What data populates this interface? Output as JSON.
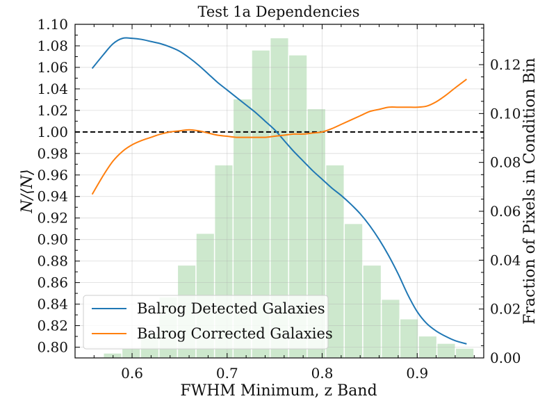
{
  "chart_data": {
    "type": "line",
    "title": "Test 1a Dependencies",
    "xlabel": "FWHM Minimum, z Band",
    "ylabel": "N/⟨N⟩",
    "y2label": "Fraction of Pixels in Condition Bin",
    "xlim": [
      0.54,
      0.97
    ],
    "ylim": [
      0.79,
      1.1
    ],
    "y2lim": [
      0.0,
      0.1365
    ],
    "xticks": [
      "0.6",
      "0.7",
      "0.8",
      "0.9"
    ],
    "xtick_values": [
      0.6,
      0.7,
      0.8,
      0.9
    ],
    "yticks": [
      "0.80",
      "0.82",
      "0.84",
      "0.86",
      "0.88",
      "0.90",
      "0.92",
      "0.94",
      "0.96",
      "0.98",
      "1.00",
      "1.02",
      "1.04",
      "1.06",
      "1.08",
      "1.10"
    ],
    "ytick_values": [
      0.8,
      0.82,
      0.84,
      0.86,
      0.88,
      0.9,
      0.92,
      0.94,
      0.96,
      0.98,
      1.0,
      1.02,
      1.04,
      1.06,
      1.08,
      1.1
    ],
    "y2ticks": [
      "0.00",
      "0.02",
      "0.04",
      "0.06",
      "0.08",
      "0.10",
      "0.12"
    ],
    "y2tick_values": [
      0.0,
      0.02,
      0.04,
      0.06,
      0.08,
      0.1,
      0.12
    ],
    "reference_line": 1.0,
    "grid": true,
    "legend_position": "lower-left",
    "histogram": {
      "color": "#2ca02c",
      "bin_width": 0.0195,
      "centers": [
        0.5795,
        0.599,
        0.6185,
        0.638,
        0.6575,
        0.677,
        0.6965,
        0.716,
        0.7355,
        0.755,
        0.7745,
        0.794,
        0.8135,
        0.833,
        0.8525,
        0.872,
        0.8915,
        0.911,
        0.9305,
        0.95
      ],
      "fractions": [
        0.002,
        0.004,
        0.01,
        0.025,
        0.038,
        0.051,
        0.079,
        0.106,
        0.126,
        0.131,
        0.124,
        0.102,
        0.079,
        0.055,
        0.038,
        0.024,
        0.016,
        0.009,
        0.006,
        0.004
      ]
    },
    "series": [
      {
        "name": "Balrog Detected Galaxies",
        "color": "#1f77b4",
        "x": [
          0.558,
          0.57,
          0.58,
          0.59,
          0.6,
          0.61,
          0.62,
          0.63,
          0.64,
          0.65,
          0.66,
          0.67,
          0.68,
          0.69,
          0.7,
          0.71,
          0.72,
          0.73,
          0.74,
          0.75,
          0.76,
          0.77,
          0.78,
          0.79,
          0.8,
          0.81,
          0.82,
          0.83,
          0.84,
          0.85,
          0.86,
          0.87,
          0.88,
          0.89,
          0.9,
          0.91,
          0.92,
          0.93,
          0.94,
          0.952
        ],
        "values": [
          1.059,
          1.072,
          1.082,
          1.087,
          1.087,
          1.086,
          1.084,
          1.082,
          1.079,
          1.075,
          1.069,
          1.062,
          1.054,
          1.046,
          1.039,
          1.032,
          1.025,
          1.018,
          1.01,
          1.002,
          0.992,
          0.982,
          0.973,
          0.964,
          0.956,
          0.948,
          0.941,
          0.933,
          0.924,
          0.913,
          0.9,
          0.885,
          0.868,
          0.849,
          0.833,
          0.822,
          0.815,
          0.81,
          0.806,
          0.803
        ]
      },
      {
        "name": "Balrog Corrected Galaxies",
        "color": "#ff7f0e",
        "x": [
          0.558,
          0.57,
          0.58,
          0.59,
          0.6,
          0.61,
          0.62,
          0.63,
          0.64,
          0.65,
          0.66,
          0.67,
          0.68,
          0.69,
          0.7,
          0.71,
          0.72,
          0.73,
          0.74,
          0.75,
          0.76,
          0.77,
          0.78,
          0.79,
          0.8,
          0.81,
          0.82,
          0.83,
          0.84,
          0.85,
          0.86,
          0.87,
          0.88,
          0.89,
          0.9,
          0.91,
          0.92,
          0.93,
          0.94,
          0.952
        ],
        "values": [
          0.942,
          0.96,
          0.973,
          0.982,
          0.988,
          0.992,
          0.995,
          0.998,
          1.0,
          1.001,
          1.002,
          1.001,
          0.999,
          0.997,
          0.996,
          0.995,
          0.995,
          0.995,
          0.995,
          0.996,
          0.997,
          0.998,
          0.998,
          0.999,
          1.0,
          1.003,
          1.007,
          1.011,
          1.015,
          1.019,
          1.021,
          1.023,
          1.023,
          1.023,
          1.023,
          1.024,
          1.028,
          1.034,
          1.041,
          1.049
        ]
      }
    ]
  }
}
